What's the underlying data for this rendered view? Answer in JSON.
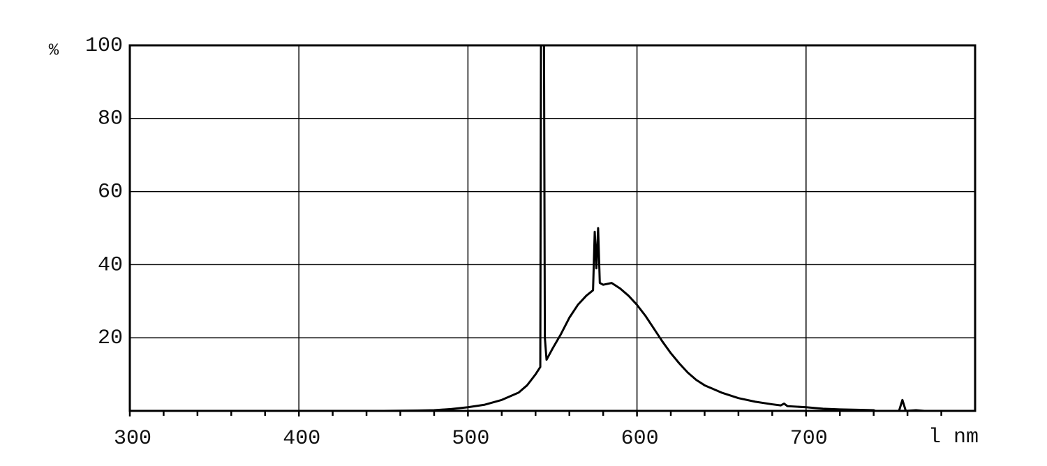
{
  "chart_data": {
    "type": "line",
    "y_unit_label": "%",
    "x_unit_label": "l nm",
    "xlim": [
      300,
      800
    ],
    "ylim": [
      0,
      100
    ],
    "xticks": [
      300,
      400,
      500,
      600,
      700
    ],
    "xminorticks": [
      320,
      340,
      360,
      380,
      420,
      440,
      460,
      480,
      520,
      540,
      560,
      580,
      620,
      640,
      660,
      680,
      720,
      740,
      760,
      780
    ],
    "yticks": [
      20,
      40,
      60,
      80,
      100
    ],
    "grid": true,
    "x": [
      300,
      450,
      470,
      480,
      490,
      500,
      510,
      520,
      530,
      535,
      540,
      542.8,
      543.2,
      545,
      545.5,
      546.5,
      550,
      555,
      560,
      565,
      570,
      574,
      575,
      576,
      577,
      578,
      580,
      585,
      590,
      595,
      600,
      605,
      610,
      615,
      620,
      625,
      630,
      635,
      640,
      650,
      660,
      670,
      680,
      685,
      687,
      689,
      700,
      710,
      720,
      730,
      740,
      741,
      755,
      757,
      759,
      765,
      770,
      780
    ],
    "series": [
      {
        "color": "#000000",
        "values": [
          0,
          0,
          0.1,
          0.2,
          0.5,
          1,
          1.7,
          3,
          5,
          7,
          10,
          12,
          100,
          100,
          20,
          14,
          17,
          21,
          25.5,
          29,
          31.5,
          33,
          49,
          39,
          50,
          35,
          34.5,
          35,
          33.5,
          31.5,
          29,
          26,
          22.5,
          19,
          15.8,
          13,
          10.5,
          8.5,
          7,
          5,
          3.5,
          2.5,
          1.8,
          1.5,
          2,
          1.3,
          1,
          0.6,
          0.4,
          0.3,
          0.2,
          0,
          0,
          3,
          0,
          0.2,
          0,
          0
        ]
      }
    ]
  }
}
